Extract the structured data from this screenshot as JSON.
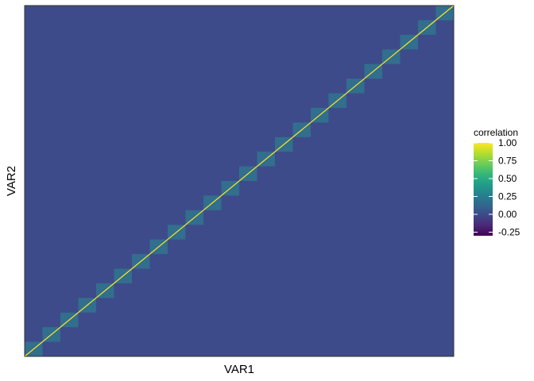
{
  "chart_data": {
    "type": "heatmap",
    "xlabel": "VAR1",
    "ylabel": "VAR2",
    "legend": {
      "title": "correlation",
      "placement": "right",
      "ticks": [
        1.0,
        0.75,
        0.5,
        0.25,
        0.0,
        -0.25
      ],
      "tick_labels": [
        "1.00",
        "0.75",
        "0.50",
        "0.25",
        "0.00",
        "-0.25"
      ],
      "range": [
        -0.3,
        1.0
      ],
      "colormap": "viridis"
    },
    "x_tick_labels": [],
    "y_tick_labels": [],
    "background_correlation": 0.03,
    "diagonal_correlation": 1.0,
    "block_correlation": 0.2,
    "block_count": 24,
    "grid": false
  },
  "colors": {
    "viridis": [
      "#440154",
      "#482878",
      "#3e4989",
      "#31688e",
      "#26828e",
      "#1f9e89",
      "#35b779",
      "#6ece58",
      "#b5de2b",
      "#fde725"
    ],
    "background_cell": "#3e4b8a",
    "panel_border": "#333333"
  }
}
